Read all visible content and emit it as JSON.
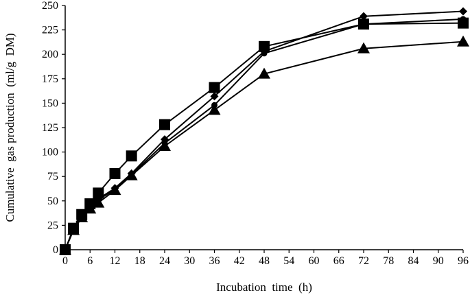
{
  "chart_data": {
    "type": "line",
    "title": "",
    "xlabel": "Incubation  time  (h)",
    "ylabel": "Cumulative  gas production  (ml/g  DM)",
    "xlim": [
      0,
      96
    ],
    "ylim": [
      0,
      250
    ],
    "xticks": [
      0,
      6,
      12,
      18,
      24,
      30,
      36,
      42,
      48,
      54,
      60,
      66,
      72,
      78,
      84,
      90,
      96
    ],
    "yticks": [
      0,
      25,
      50,
      75,
      100,
      125,
      150,
      175,
      200,
      225,
      250
    ],
    "grid": false,
    "legend": "none",
    "series": [
      {
        "marker": "diamond",
        "x": [
          0,
          2,
          4,
          6,
          8,
          12,
          16,
          24,
          36,
          48,
          72,
          96
        ],
        "values": [
          0,
          21,
          34,
          44,
          52,
          63,
          78,
          113,
          157,
          203,
          239,
          244
        ]
      },
      {
        "marker": "circle",
        "x": [
          0,
          2,
          4,
          6,
          8,
          12,
          16,
          24,
          36,
          48,
          72,
          96
        ],
        "values": [
          0,
          21,
          33,
          44,
          51,
          62,
          77,
          109,
          148,
          201,
          231,
          236
        ]
      },
      {
        "marker": "square",
        "x": [
          0,
          2,
          4,
          6,
          8,
          12,
          16,
          24,
          36,
          48,
          72,
          96
        ],
        "values": [
          0,
          22,
          36,
          47,
          58,
          78,
          96,
          128,
          166,
          208,
          231,
          232
        ]
      },
      {
        "marker": "triangle",
        "x": [
          0,
          2,
          4,
          6,
          8,
          12,
          16,
          24,
          36,
          48,
          72,
          96
        ],
        "values": [
          0,
          20,
          33,
          42,
          48,
          61,
          76,
          106,
          143,
          180,
          206,
          213
        ]
      }
    ]
  }
}
